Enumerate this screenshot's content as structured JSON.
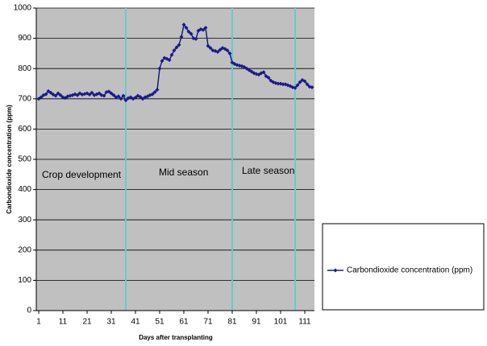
{
  "chart_data": {
    "type": "line",
    "y_label": "Carbondioxide concentration (ppm)",
    "x_label": "Days after transplanting",
    "annotations": [
      "Crop development",
      "Mid season",
      "Late season"
    ],
    "stage_lines": [
      37,
      81,
      107
    ],
    "stage_line_color": "#66cccc",
    "background": "#c0c0c0",
    "grid": true,
    "legend": "right",
    "xlim": [
      0,
      115
    ],
    "xticks": [
      1,
      11,
      21,
      31,
      41,
      51,
      61,
      71,
      81,
      91,
      101,
      111
    ],
    "ylim": [
      0,
      1000
    ],
    "yticks": [
      0,
      100,
      200,
      300,
      400,
      500,
      600,
      700,
      800,
      900,
      1000
    ],
    "x": [
      1,
      2,
      3,
      4,
      5,
      6,
      7,
      8,
      9,
      10,
      11,
      12,
      13,
      14,
      15,
      16,
      17,
      18,
      19,
      20,
      21,
      22,
      23,
      24,
      25,
      26,
      27,
      28,
      29,
      30,
      31,
      32,
      33,
      34,
      35,
      36,
      37,
      38,
      39,
      40,
      41,
      42,
      43,
      44,
      45,
      46,
      47,
      48,
      49,
      50,
      51,
      52,
      53,
      54,
      55,
      56,
      57,
      58,
      59,
      60,
      61,
      62,
      63,
      64,
      65,
      66,
      67,
      68,
      69,
      70,
      71,
      72,
      73,
      74,
      75,
      76,
      77,
      78,
      79,
      80,
      81,
      82,
      83,
      84,
      85,
      86,
      87,
      88,
      89,
      90,
      91,
      92,
      93,
      94,
      95,
      96,
      97,
      98,
      99,
      100,
      101,
      102,
      103,
      104,
      105,
      106,
      107,
      108,
      109,
      110,
      111,
      112,
      113,
      114
    ],
    "series": [
      {
        "name": "Carbondioxide concentration (ppm)",
        "color": "#1a1a8c",
        "values": [
          700,
          705,
          712,
          715,
          725,
          720,
          714,
          710,
          718,
          712,
          705,
          703,
          708,
          710,
          712,
          715,
          712,
          718,
          714,
          716,
          718,
          714,
          720,
          712,
          715,
          718,
          712,
          710,
          722,
          724,
          718,
          712,
          705,
          708,
          700,
          710,
          695,
          702,
          705,
          700,
          704,
          710,
          706,
          700,
          705,
          708,
          712,
          715,
          722,
          730,
          800,
          825,
          835,
          832,
          828,
          845,
          860,
          870,
          878,
          905,
          945,
          935,
          922,
          915,
          900,
          898,
          925,
          930,
          928,
          935,
          875,
          868,
          860,
          858,
          855,
          862,
          868,
          865,
          860,
          850,
          820,
          815,
          812,
          810,
          808,
          805,
          800,
          795,
          790,
          785,
          782,
          780,
          785,
          788,
          775,
          770,
          760,
          755,
          752,
          750,
          750,
          748,
          748,
          745,
          742,
          738,
          736,
          745,
          755,
          762,
          758,
          748,
          740,
          738
        ]
      }
    ]
  }
}
